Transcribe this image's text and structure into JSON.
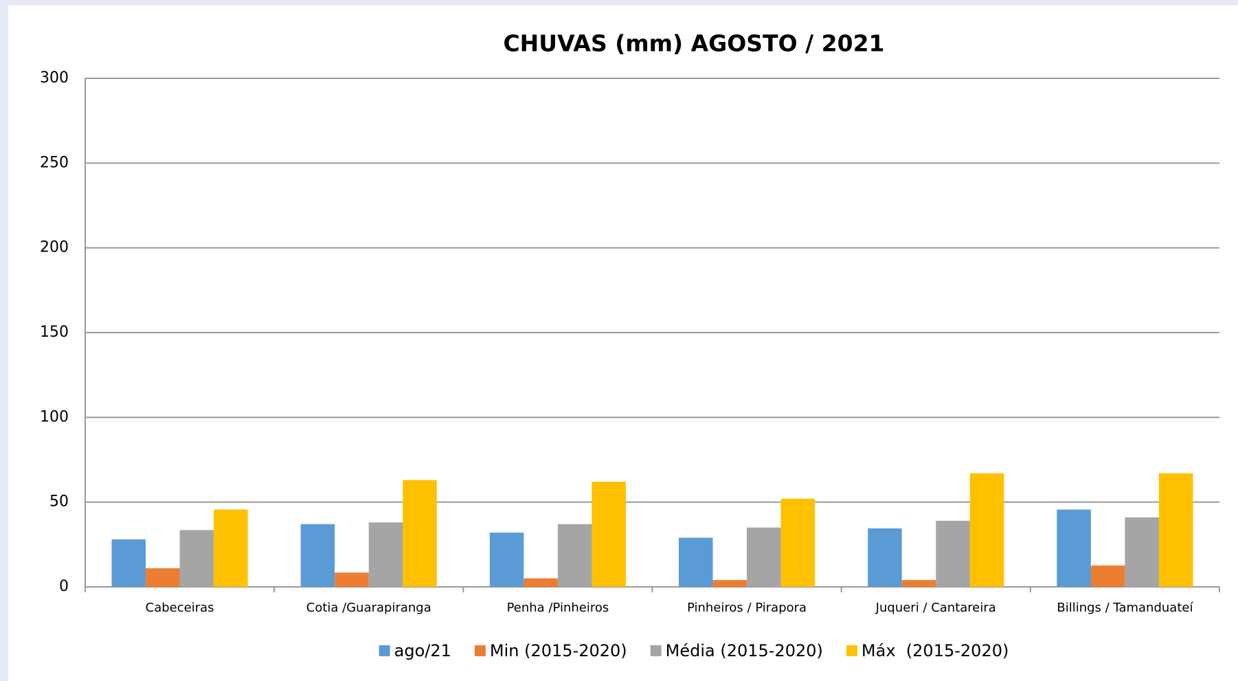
{
  "chart_data": {
    "type": "bar",
    "title": "CHUVAS (mm) AGOSTO / 2021",
    "categories": [
      "Cabeceiras",
      "Cotia /Guarapiranga",
      "Penha /Pinheiros",
      "Pinheiros / Pirapora",
      "Juqueri / Cantareira",
      "Billings / Tamanduateí"
    ],
    "series": [
      {
        "name": "ago/21",
        "color": "#5b9bd5",
        "values": [
          28,
          37,
          32,
          29,
          34.5,
          45.6
        ]
      },
      {
        "name": "Min (2015-2020)",
        "color": "#ed7d31",
        "values": [
          11,
          8.4,
          5,
          4,
          4,
          12.6
        ]
      },
      {
        "name": "Média (2015-2020)",
        "color": "#a5a5a5",
        "values": [
          33.5,
          38,
          37,
          35,
          39,
          41
        ]
      },
      {
        "name": "Máx  (2015-2020)",
        "color": "#ffc000",
        "values": [
          45.6,
          63,
          62,
          52,
          67,
          67
        ]
      }
    ],
    "ylim": [
      0,
      300
    ],
    "yticks": [
      0,
      50,
      100,
      150,
      200,
      250,
      300
    ],
    "grid": true,
    "legend": "bottom"
  }
}
